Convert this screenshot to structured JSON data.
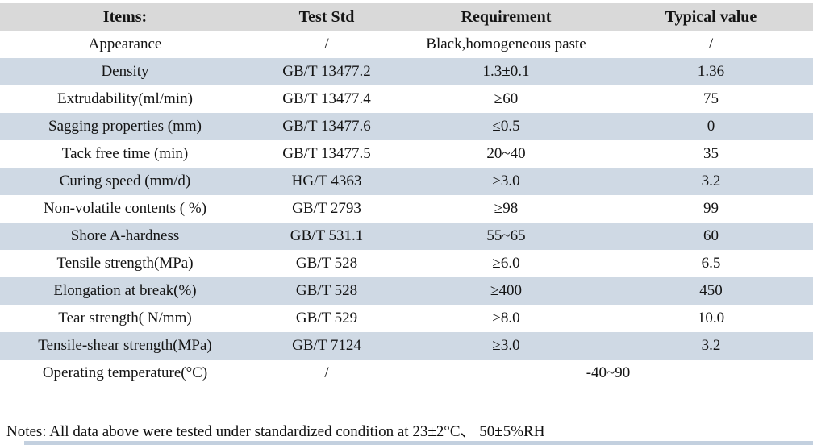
{
  "table": {
    "columns": [
      "Items:",
      "Test Std",
      "Requirement",
      "Typical value"
    ],
    "rows": [
      {
        "item": "Appearance",
        "test_std": "/",
        "requirement": "Black,homogeneous paste",
        "typical": "/"
      },
      {
        "item": "Density",
        "test_std": "GB/T 13477.2",
        "requirement": "1.3±0.1",
        "typical": "1.36"
      },
      {
        "item": "Extrudability(ml/min)",
        "test_std": "GB/T 13477.4",
        "requirement": "≥60",
        "typical": "75"
      },
      {
        "item": "Sagging properties (mm)",
        "test_std": "GB/T 13477.6",
        "requirement": "≤0.5",
        "typical": "0"
      },
      {
        "item": "Tack free time (min)",
        "test_std": "GB/T 13477.5",
        "requirement": "20~40",
        "typical": "35"
      },
      {
        "item": "Curing speed (mm/d)",
        "test_std": "HG/T 4363",
        "requirement": "≥3.0",
        "typical": "3.2"
      },
      {
        "item": "Non-volatile contents ( %)",
        "test_std": "GB/T 2793",
        "requirement": "≥98",
        "typical": "99"
      },
      {
        "item": "Shore A-hardness",
        "test_std": "GB/T 531.1",
        "requirement": "55~65",
        "typical": "60"
      },
      {
        "item": "Tensile strength(MPa)",
        "test_std": "GB/T 528",
        "requirement": "≥6.0",
        "typical": "6.5"
      },
      {
        "item": "Elongation at break(%)",
        "test_std": "GB/T 528",
        "requirement": "≥400",
        "typical": "450"
      },
      {
        "item": "Tear strength( N/mm)",
        "test_std": "GB/T 529",
        "requirement": "≥8.0",
        "typical": "10.0"
      },
      {
        "item": "Tensile-shear strength(MPa)",
        "test_std": "GB/T 7124",
        "requirement": "≥3.0",
        "typical": "3.2"
      },
      {
        "item": "Operating temperature(°C)",
        "test_std": "/",
        "requirement": "-40~90",
        "typical": null,
        "requirement_colspan": 2
      }
    ]
  },
  "notes": "Notes: All data above were tested under standardized condition at 23±2°C、 50±5%RH",
  "colors": {
    "header_bg": "#d9d9d9",
    "stripe_bg": "#cfd9e4",
    "text": "#141414"
  }
}
